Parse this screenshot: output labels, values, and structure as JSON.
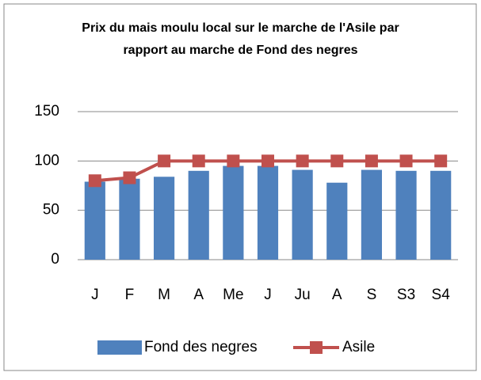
{
  "chart_data": {
    "type": "bar",
    "title": "Prix du mais moulu local sur le marche de l'Asile par rapport au marche de Fond des negres",
    "categories": [
      "J",
      "F",
      "M",
      "A",
      "Me",
      "J",
      "Ju",
      "A",
      "S",
      "S3",
      "S4"
    ],
    "series": [
      {
        "name": "Fond des negres",
        "type": "bar",
        "color": "#4f81bd",
        "values": [
          79,
          82,
          84,
          90,
          95,
          95,
          91,
          78,
          91,
          90,
          90
        ]
      },
      {
        "name": "Asile",
        "type": "line",
        "color": "#c0504d",
        "values": [
          80,
          83,
          100,
          100,
          100,
          100,
          100,
          100,
          100,
          100,
          100
        ]
      }
    ],
    "ylim": [
      0,
      150
    ],
    "yticks": [
      0,
      50,
      100,
      150
    ],
    "grid": true,
    "legend": "bottom"
  }
}
